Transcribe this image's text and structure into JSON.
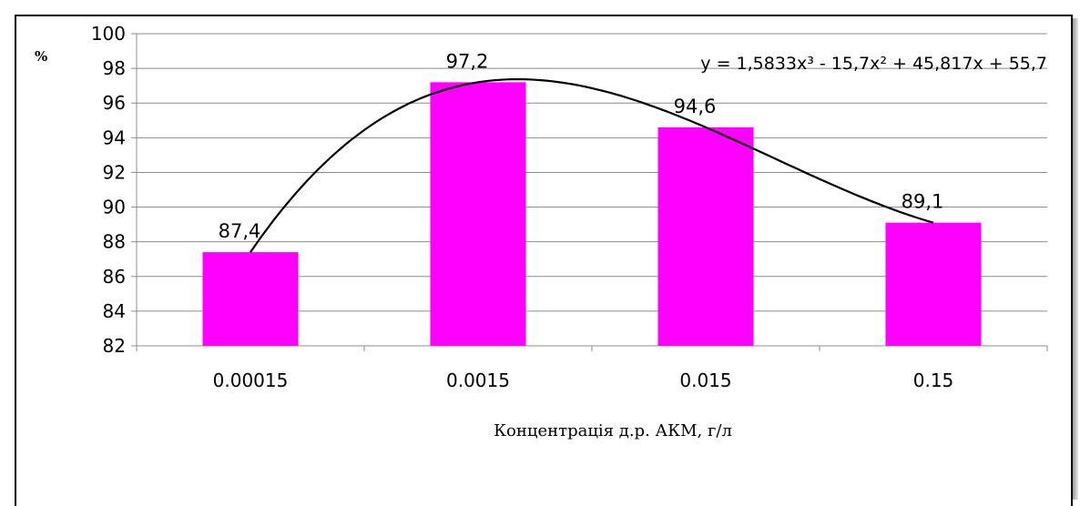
{
  "chart_data": {
    "type": "bar",
    "categories": [
      "0.00015",
      "0.0015",
      "0.015",
      "0.15"
    ],
    "values": [
      87.4,
      97.2,
      94.6,
      89.1
    ],
    "value_labels": [
      "87,4",
      "97,2",
      "94,6",
      "89,1"
    ],
    "title": "",
    "ylabel": "%",
    "xlabel": "Концентрація д.р. АКМ, г/л",
    "ylim": [
      82,
      100
    ],
    "yticks": [
      82,
      84,
      86,
      88,
      90,
      92,
      94,
      96,
      98,
      100
    ],
    "grid": true,
    "bar_color": "#ff00ff",
    "trendline": {
      "type": "polynomial",
      "order": 3,
      "coefficients": [
        1.5833,
        -15.7,
        45.817,
        55.7
      ],
      "equation": "y = 1,5833x³ - 15,7x² + 45,817x + 55,7",
      "color": "#000000"
    }
  }
}
